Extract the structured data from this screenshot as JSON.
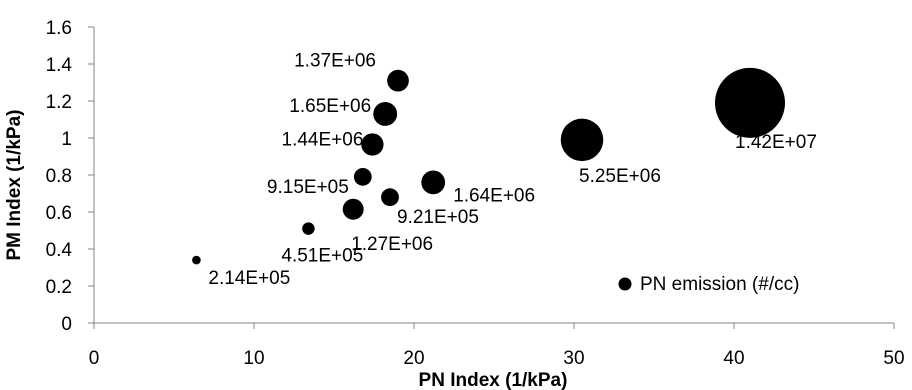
{
  "chart_data": {
    "type": "scatter",
    "variant": "bubble",
    "title": "",
    "xlabel": "PN Index (1/kPa)",
    "ylabel": "PM Index (1/kPa)",
    "xlim": [
      0,
      50
    ],
    "ylim": [
      0,
      1.6
    ],
    "xticks": [
      0,
      10,
      20,
      30,
      40,
      50
    ],
    "yticks": [
      0,
      0.2,
      0.4,
      0.6,
      0.8,
      1,
      1.2,
      1.4,
      1.6
    ],
    "grid": false,
    "legend_position": "bottom-right",
    "series": [
      {
        "name": "PN emission (#/cc)",
        "color": "#000000",
        "points": [
          {
            "x": 6.4,
            "y": 0.34,
            "size": 214000,
            "label": "2.14E+05"
          },
          {
            "x": 13.4,
            "y": 0.51,
            "size": 451000,
            "label": "4.51E+05"
          },
          {
            "x": 16.2,
            "y": 0.615,
            "size": 1270000,
            "label": "1.27E+06"
          },
          {
            "x": 16.8,
            "y": 0.79,
            "size": 915000,
            "label": "9.15E+05"
          },
          {
            "x": 18.5,
            "y": 0.68,
            "size": 921000,
            "label": "9.21E+05"
          },
          {
            "x": 17.4,
            "y": 0.965,
            "size": 1440000,
            "label": "1.44E+06"
          },
          {
            "x": 18.2,
            "y": 1.13,
            "size": 1650000,
            "label": "1.65E+06"
          },
          {
            "x": 19.0,
            "y": 1.31,
            "size": 1370000,
            "label": "1.37E+06"
          },
          {
            "x": 21.2,
            "y": 0.76,
            "size": 1640000,
            "label": "1.64E+06"
          },
          {
            "x": 30.5,
            "y": 0.99,
            "size": 5250000,
            "label": "5.25E+06"
          },
          {
            "x": 41.0,
            "y": 1.19,
            "size": 14200000,
            "label": "1.42E+07"
          }
        ]
      }
    ]
  }
}
